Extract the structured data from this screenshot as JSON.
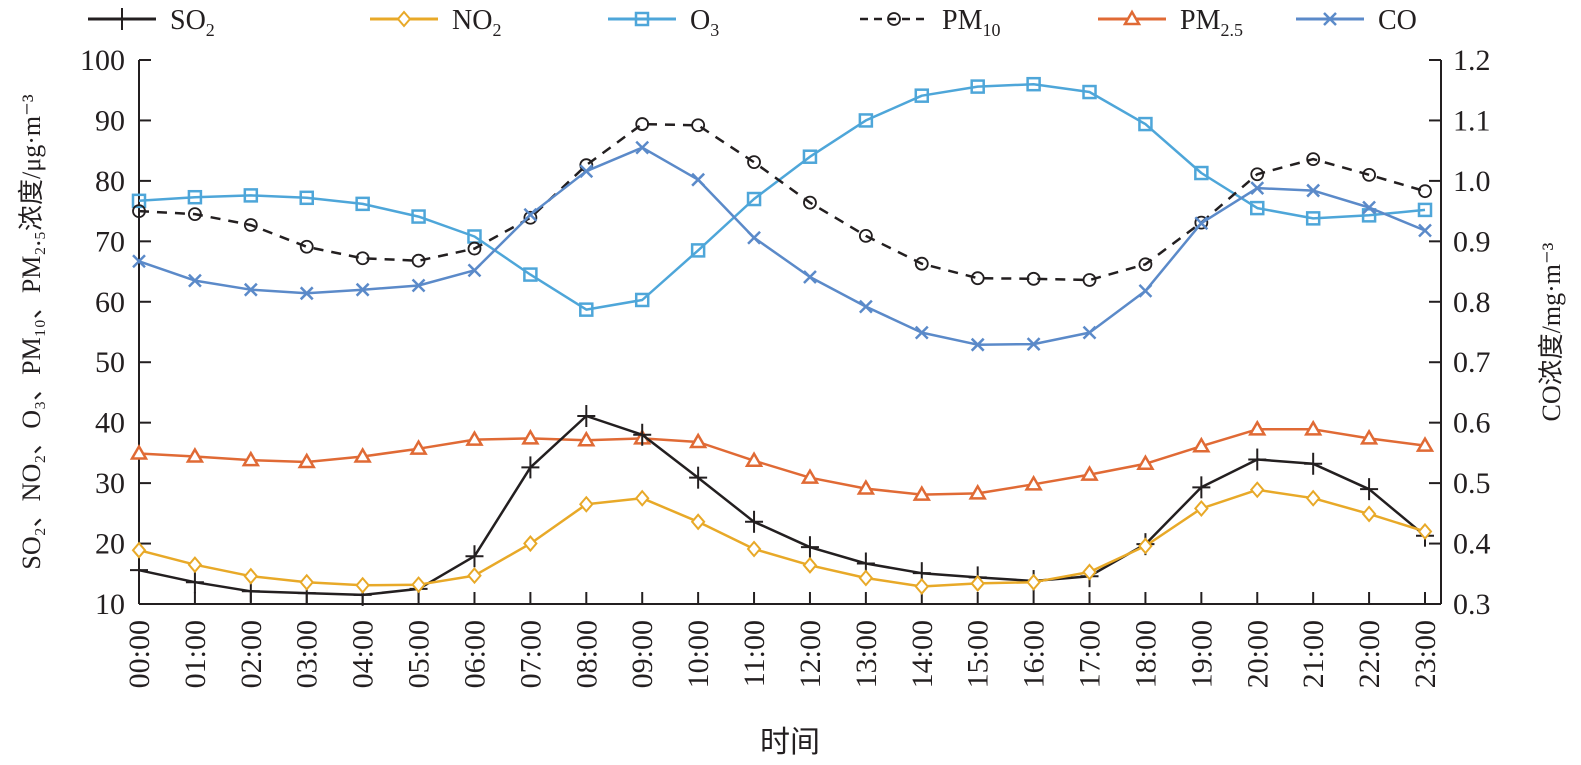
{
  "chart_data": {
    "type": "line",
    "title": "",
    "xlabel": "时间",
    "ylabel_left": "SO₂、NO₂、O₃、PM₁₀、PM₂.₅浓度/μg·m⁻³",
    "ylabel_right": "CO浓度/mg·m⁻³",
    "ylim_left": [
      10,
      100
    ],
    "ylim_right": [
      0.3,
      1.2
    ],
    "yticks_left": [
      "100",
      "90",
      "80",
      "70",
      "60",
      "50",
      "40",
      "30",
      "20",
      "10"
    ],
    "yticks_right": [
      "1.2",
      "1.1",
      "1.0",
      "0.9",
      "0.8",
      "0.7",
      "0.6",
      "0.5",
      "0.4",
      "0.3"
    ],
    "grid": false,
    "legend_position": "top",
    "categories": [
      "00:00",
      "01:00",
      "02:00",
      "03:00",
      "04:00",
      "05:00",
      "06:00",
      "07:00",
      "08:00",
      "09:00",
      "10:00",
      "11:00",
      "12:00",
      "13:00",
      "14:00",
      "15:00",
      "16:00",
      "17:00",
      "18:00",
      "19:00",
      "20:00",
      "21:00",
      "22:00",
      "23:00"
    ],
    "series": [
      {
        "name": "SO2",
        "label_main": "SO",
        "label_sub": "2",
        "label_sup": "",
        "axis": "left",
        "color": "#231f20",
        "marker": "plus",
        "dashed": false,
        "values": [
          15.6,
          13.6,
          12.1,
          11.8,
          11.5,
          12.5,
          17.9,
          32.6,
          41.1,
          38.0,
          30.9,
          23.6,
          19.4,
          16.7,
          15.1,
          14.4,
          13.8,
          14.6,
          19.9,
          29.3,
          33.9,
          33.2,
          29.0,
          21.3
        ]
      },
      {
        "name": "NO2",
        "label_main": "NO",
        "label_sub": "2",
        "label_sup": "",
        "axis": "left",
        "color": "#e8a928",
        "marker": "diamond",
        "dashed": false,
        "values": [
          18.9,
          16.5,
          14.6,
          13.6,
          13.1,
          13.2,
          14.7,
          20.0,
          26.5,
          27.5,
          23.6,
          19.1,
          16.4,
          14.3,
          12.9,
          13.4,
          13.6,
          15.3,
          19.6,
          25.8,
          28.9,
          27.5,
          24.9,
          22.0
        ]
      },
      {
        "name": "O3",
        "label_main": "O",
        "label_sub": "3",
        "label_sup": "",
        "axis": "left",
        "color": "#4ea6d9",
        "marker": "square",
        "dashed": false,
        "values": [
          76.7,
          77.3,
          77.6,
          77.2,
          76.2,
          74.1,
          70.8,
          64.5,
          58.7,
          60.3,
          68.5,
          77.0,
          84.0,
          90.0,
          94.1,
          95.6,
          96.0,
          94.7,
          89.4,
          81.3,
          75.5,
          73.8,
          74.3,
          75.2
        ]
      },
      {
        "name": "PM10",
        "label_main": "PM",
        "label_sub": "10",
        "label_sup": "",
        "axis": "left",
        "color": "#231f20",
        "marker": "circle",
        "dashed": true,
        "values": [
          75.0,
          74.5,
          72.7,
          69.1,
          67.2,
          66.8,
          68.8,
          73.9,
          82.6,
          89.4,
          89.2,
          83.1,
          76.4,
          70.9,
          66.3,
          63.9,
          63.8,
          63.6,
          66.2,
          73.1,
          81.1,
          83.6,
          81.0,
          78.3
        ]
      },
      {
        "name": "PM2.5",
        "label_main": "PM",
        "label_sub": "2.5",
        "label_sup": "",
        "axis": "left",
        "color": "#e06a35",
        "marker": "triangle",
        "dashed": false,
        "values": [
          34.9,
          34.4,
          33.8,
          33.5,
          34.4,
          35.7,
          37.2,
          37.4,
          37.1,
          37.4,
          36.8,
          33.7,
          30.9,
          29.1,
          28.1,
          28.3,
          29.8,
          31.4,
          33.2,
          36.1,
          38.9,
          38.9,
          37.4,
          36.2
        ]
      },
      {
        "name": "CO",
        "label_main": "CO",
        "label_sub": "",
        "label_sup": "",
        "axis": "right",
        "color": "#5b8ac9",
        "marker": "x",
        "dashed": false,
        "values": [
          0.867,
          0.835,
          0.82,
          0.814,
          0.82,
          0.827,
          0.852,
          0.944,
          1.016,
          1.055,
          1.002,
          0.906,
          0.841,
          0.792,
          0.749,
          0.729,
          0.73,
          0.749,
          0.818,
          0.93,
          0.988,
          0.984,
          0.956,
          0.918
        ]
      }
    ]
  }
}
